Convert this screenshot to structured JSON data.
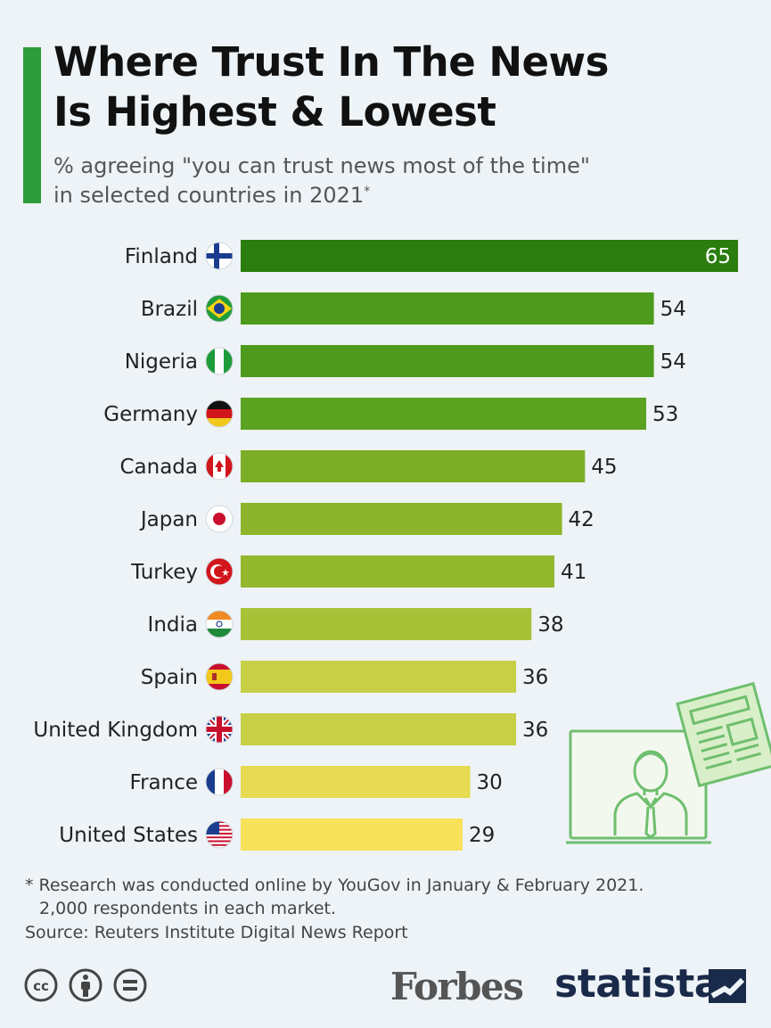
{
  "title_line1": "Where Trust In The News",
  "title_line2": "Is Highest & Lowest",
  "subtitle_line1": "% agreeing \"you can trust news most of the time\"",
  "subtitle_line2": "in selected countries in 2021",
  "subtitle_marker": "*",
  "footnote_line1": "* Research was conducted online by YouGov in January & February 2021.",
  "footnote_line2": "2,000 respondents in each market.",
  "source": "Source: Reuters Institute Digital News Report",
  "brand_forbes": "Forbes",
  "brand_statista": "statista",
  "colors": {
    "accent": "#2d9b3a",
    "bar_top": "#2b7d0e",
    "bar_bottom": "#f7e25a"
  },
  "chart_data": {
    "type": "bar",
    "orientation": "horizontal",
    "categories": [
      "Finland",
      "Brazil",
      "Nigeria",
      "Germany",
      "Canada",
      "Japan",
      "Turkey",
      "India",
      "Spain",
      "United Kingdom",
      "France",
      "United States"
    ],
    "values": [
      65,
      54,
      54,
      53,
      45,
      42,
      41,
      38,
      36,
      36,
      30,
      29
    ],
    "flags": [
      "finland-flag-icon",
      "brazil-flag-icon",
      "nigeria-flag-icon",
      "germany-flag-icon",
      "canada-flag-icon",
      "japan-flag-icon",
      "turkey-flag-icon",
      "india-flag-icon",
      "spain-flag-icon",
      "united-kingdom-flag-icon",
      "france-flag-icon",
      "united-states-flag-icon"
    ],
    "bar_colors": [
      "#2b7d0e",
      "#4d9a1c",
      "#4d9a1c",
      "#5ba221",
      "#7bad27",
      "#8cb52b",
      "#93b72d",
      "#a8c136",
      "#c7cf47",
      "#c7cf47",
      "#e6db52",
      "#f7e25a"
    ],
    "xlim": [
      0,
      65
    ],
    "grid": false,
    "legend": "none"
  }
}
